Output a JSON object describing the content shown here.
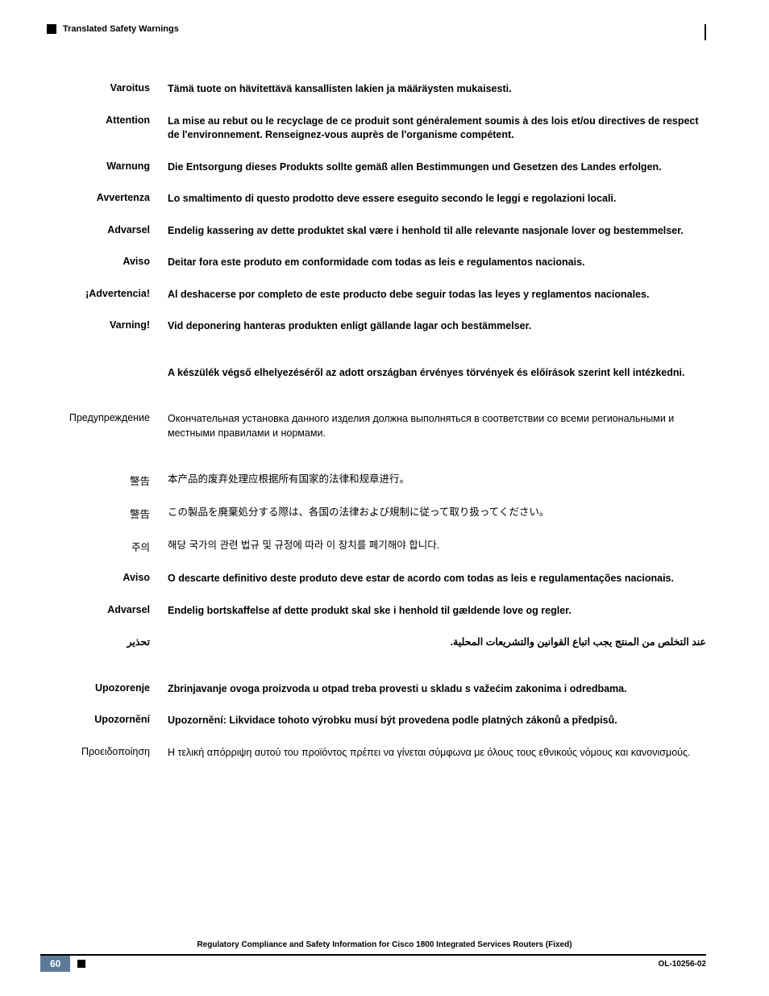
{
  "header": {
    "section_title": "Translated Safety Warnings"
  },
  "warnings": [
    {
      "label": "Varoitus",
      "text": "Tämä tuote on hävitettävä kansallisten lakien ja määräysten mukaisesti.",
      "bold_label": true,
      "bold_text": true
    },
    {
      "label": "Attention",
      "text": "La mise au rebut ou le recyclage de ce produit sont généralement soumis à des lois et/ou directives de respect de l'environnement. Renseignez-vous auprès de l'organisme compétent.",
      "bold_label": true,
      "bold_text": true
    },
    {
      "label": "Warnung",
      "text": "Die Entsorgung dieses Produkts sollte gemäß allen Bestimmungen und Gesetzen des Landes erfolgen.",
      "bold_label": true,
      "bold_text": true
    },
    {
      "label": "Avvertenza",
      "text": "Lo smaltimento di questo prodotto deve essere eseguito secondo le leggi e regolazioni locali.",
      "bold_label": true,
      "bold_text": true
    },
    {
      "label": "Advarsel",
      "text": "Endelig kassering av dette produktet skal være i henhold til alle relevante nasjonale lover og bestemmelser.",
      "bold_label": true,
      "bold_text": true
    },
    {
      "label": "Aviso",
      "text": "Deitar fora este produto em conformidade com todas as leis e regulamentos nacionais.",
      "bold_label": true,
      "bold_text": true
    },
    {
      "label": "¡Advertencia!",
      "text": "Al deshacerse por completo de este producto debe seguir todas las leyes y reglamentos nacionales.",
      "bold_label": true,
      "bold_text": true
    },
    {
      "label": "Varning!",
      "text": "Vid deponering hanteras produkten enligt gällande lagar och bestämmelser.",
      "bold_label": true,
      "bold_text": true
    },
    {
      "label": "",
      "text": "A készülék végső elhelyezéséről az adott országban érvényes törvények és előírások szerint kell intézkedni.",
      "bold_label": true,
      "bold_text": true,
      "extra_gap": true
    },
    {
      "label": "Предупреждение",
      "text": "Окончательная установка данного изделия должна выполняться в соответствии со всеми региональными и местными правилами и нормами.",
      "bold_label": false,
      "bold_text": false,
      "extra_gap": true
    },
    {
      "label": "警告",
      "text": "本产品的废弃处理应根据所有国家的法律和规章进行。",
      "bold_label": false,
      "bold_text": false,
      "extra_gap": true
    },
    {
      "label": "警告",
      "text": "この製品を廃棄処分する際は、各国の法律および規制に従って取り扱ってください。",
      "bold_label": false,
      "bold_text": false
    },
    {
      "label": "주의",
      "text": "해당 국가의 관련 법규 및 규정에 따라 이 장치를 폐기해야 합니다.",
      "bold_label": false,
      "bold_text": false
    },
    {
      "label": "Aviso",
      "text": "O descarte definitivo deste produto deve estar de acordo com todas as leis e regulamentações nacionais.",
      "bold_label": true,
      "bold_text": true
    },
    {
      "label": "Advarsel",
      "text": "Endelig bortskaffelse af dette produkt skal ske i henhold til gældende love og regler.",
      "bold_label": true,
      "bold_text": true
    },
    {
      "label": "تحذير",
      "text": "عند التخلص من المنتج يجب اتباع القوانين والتشريعات المحلية.",
      "bold_label": true,
      "bold_text": true,
      "rtl": true
    },
    {
      "label": "Upozorenje",
      "text": "Zbrinjavanje ovoga proizvoda u otpad treba provesti u skladu s važećim zakonima i odredbama.",
      "bold_label": true,
      "bold_text": true,
      "extra_gap": true
    },
    {
      "label": "Upozornění",
      "text": "Upozornění: Likvidace tohoto výrobku musí být provedena podle platných zákonů a předpisů.",
      "bold_label": true,
      "bold_text": true
    },
    {
      "label": "Προειδοποίηση",
      "text": "Η τελική απόρριψη αυτού του προϊόντος πρέπει να γίνεται σύμφωνα με όλους τους εθνικούς νόμους και κανονισμούς.",
      "bold_label": false,
      "bold_text": false
    }
  ],
  "footer": {
    "doc_title": "Regulatory Compliance and Safety Information for Cisco 1800 Integrated Services Routers (Fixed)",
    "page_number": "60",
    "doc_id": "OL-10256-02"
  },
  "colors": {
    "page_num_bg": "#5b7a9a",
    "page_num_fg": "#ffffff",
    "text": "#000000",
    "bg": "#ffffff"
  }
}
